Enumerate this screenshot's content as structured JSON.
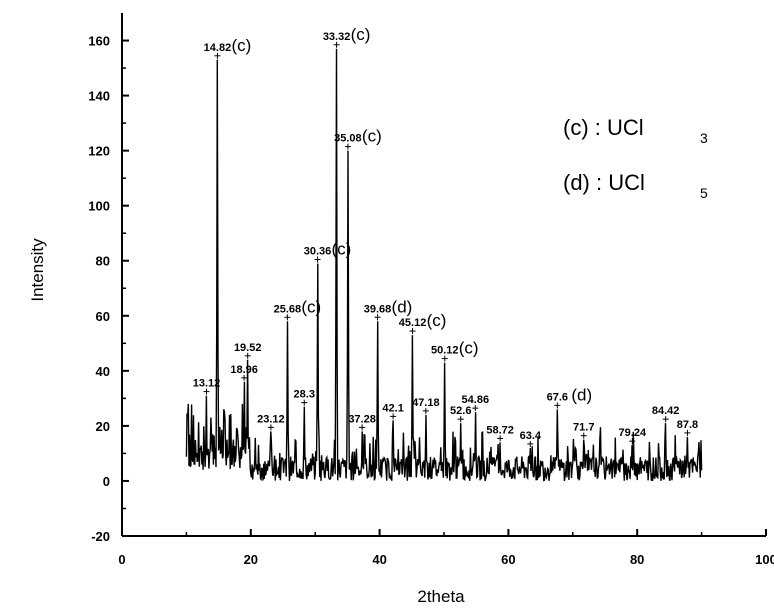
{
  "chart_data": {
    "type": "line",
    "xlabel": "2theta",
    "ylabel": "Intensity",
    "xlim": [
      0,
      100
    ],
    "ylim": [
      -20,
      170
    ],
    "x_ticks": [
      0,
      20,
      40,
      60,
      80,
      100
    ],
    "y_ticks": [
      -20,
      0,
      20,
      40,
      60,
      80,
      100,
      120,
      140,
      160
    ],
    "grid": false,
    "legend": [
      {
        "tag": "(c)",
        "sep": " : ",
        "compound": "UCl",
        "sub": "3"
      },
      {
        "tag": "(d)",
        "sep": " : ",
        "compound": "UCl",
        "sub": "5"
      }
    ],
    "peaks": [
      {
        "x": 14.82,
        "y": 153,
        "label": "14.82",
        "phase": "(c)"
      },
      {
        "x": 33.32,
        "y": 157,
        "label": "33.32",
        "phase": "(c)"
      },
      {
        "x": 35.08,
        "y": 120,
        "label": "35.08",
        "phase": "(c)"
      },
      {
        "x": 30.36,
        "y": 79,
        "label": "30.36",
        "phase": "(c)"
      },
      {
        "x": 25.68,
        "y": 58,
        "label": "25.68",
        "phase": "(c)"
      },
      {
        "x": 39.68,
        "y": 58,
        "label": "39.68",
        "phase": "(d)"
      },
      {
        "x": 45.12,
        "y": 53,
        "label": "45.12",
        "phase": "(c)"
      },
      {
        "x": 50.12,
        "y": 43,
        "label": "50.12",
        "phase": "(c)"
      },
      {
        "x": 19.52,
        "y": 44,
        "label": "19.52",
        "phase": ""
      },
      {
        "x": 67.6,
        "y": 26,
        "label": "67.6",
        "phase": "(d)"
      },
      {
        "x": 13.12,
        "y": 31,
        "label": "13.12",
        "phase": ""
      },
      {
        "x": 18.96,
        "y": 36,
        "label": "18.96",
        "phase": ""
      },
      {
        "x": 28.3,
        "y": 27,
        "label": "28.3",
        "phase": ""
      },
      {
        "x": 23.12,
        "y": 18,
        "label": "23.12",
        "phase": ""
      },
      {
        "x": 37.28,
        "y": 18,
        "label": "37.28",
        "phase": ""
      },
      {
        "x": 42.1,
        "y": 22,
        "label": "42.1",
        "phase": ""
      },
      {
        "x": 47.18,
        "y": 24,
        "label": "47.18",
        "phase": ""
      },
      {
        "x": 52.6,
        "y": 21,
        "label": "52.6",
        "phase": ""
      },
      {
        "x": 54.86,
        "y": 25,
        "label": "54.86",
        "phase": ""
      },
      {
        "x": 58.72,
        "y": 14,
        "label": "58.72",
        "phase": ""
      },
      {
        "x": 63.4,
        "y": 12,
        "label": "63.4",
        "phase": ""
      },
      {
        "x": 71.7,
        "y": 15,
        "label": "71.7",
        "phase": ""
      },
      {
        "x": 79.24,
        "y": 13,
        "label": "79.24",
        "phase": ""
      },
      {
        "x": 84.42,
        "y": 21,
        "label": "84.42",
        "phase": ""
      },
      {
        "x": 87.8,
        "y": 16,
        "label": "87.8",
        "phase": ""
      }
    ]
  }
}
